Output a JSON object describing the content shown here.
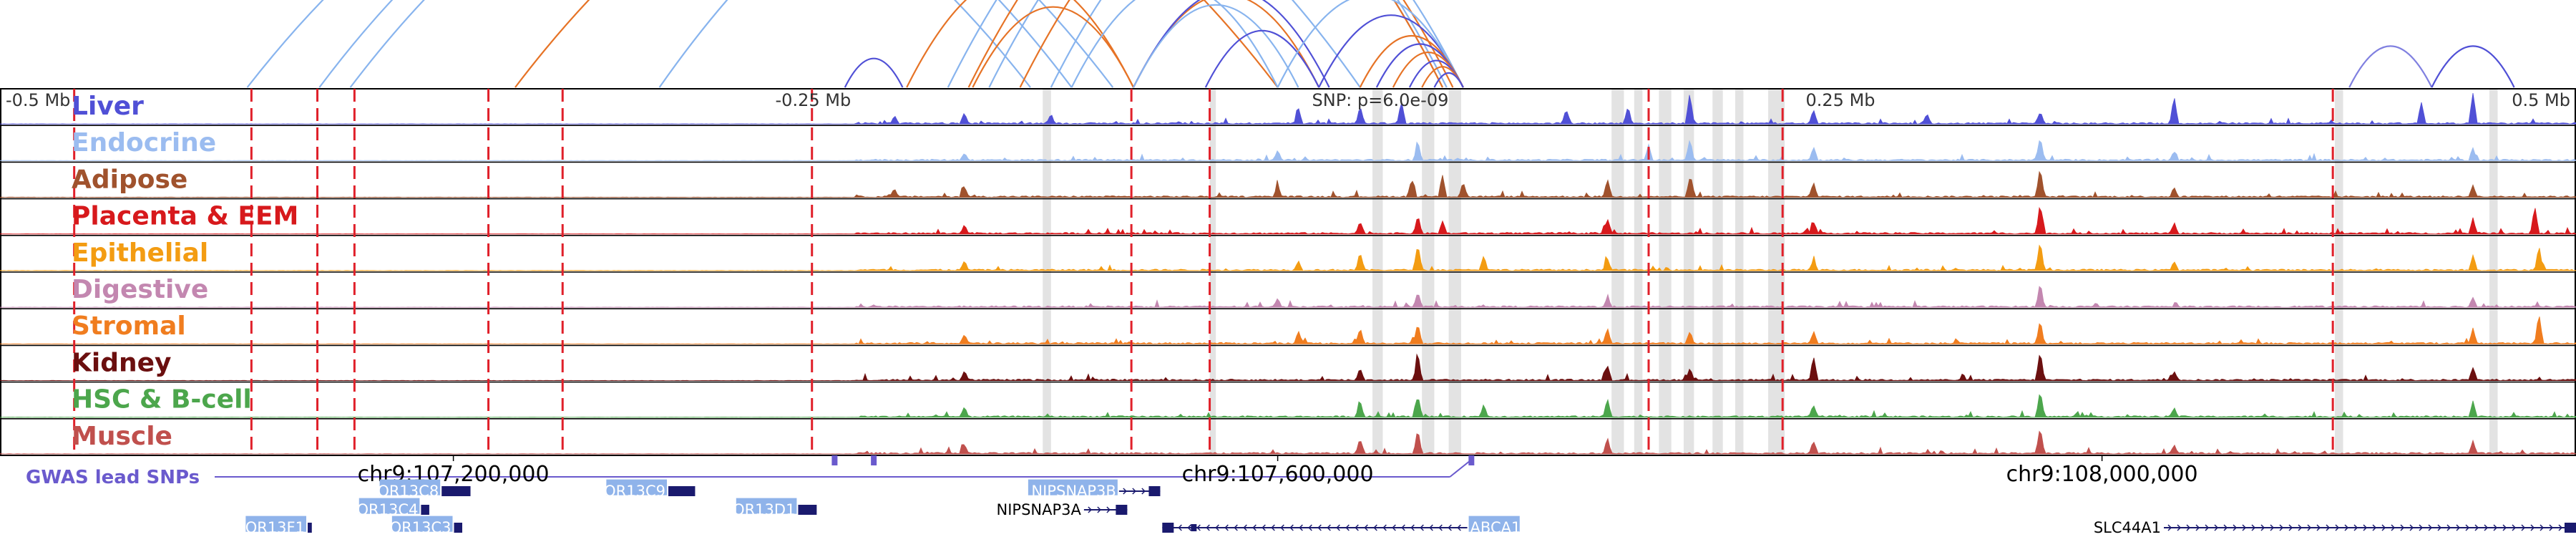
{
  "chart_data": {
    "type": "area",
    "title": "",
    "locus": {
      "chrom": "chr9",
      "start_bp": 106980000,
      "end_bp": 108230000,
      "lead_snp_bp": 107634000
    },
    "distance_ticks": [
      {
        "offset_mb": -0.5,
        "label": "-0.5 Mb"
      },
      {
        "offset_mb": -0.25,
        "label": "-0.25 Mb"
      },
      {
        "offset_mb": 0.25,
        "label": "0.25 Mb"
      },
      {
        "offset_mb": 0.5,
        "label": "0.5 Mb"
      }
    ],
    "snp_label": "SNP: p=6.0e-09",
    "coordinate_labels": [
      {
        "bp": 107200000,
        "label": "chr9:107,200,000"
      },
      {
        "bp": 107600000,
        "label": "chr9:107,600,000"
      },
      {
        "bp": 108000000,
        "label": "chr9:108,000,000"
      }
    ],
    "series": [
      {
        "name": "Liver",
        "color": "#5050d6",
        "peaks": [
          [
            107414000,
            0.25
          ],
          [
            107448000,
            0.35
          ],
          [
            107490000,
            0.3
          ],
          [
            107610000,
            0.5
          ],
          [
            107640000,
            0.6
          ],
          [
            107660000,
            0.75
          ],
          [
            107740000,
            0.5
          ],
          [
            107770000,
            0.55
          ],
          [
            107800000,
            1.0
          ],
          [
            107860000,
            0.45
          ],
          [
            107915000,
            0.3
          ],
          [
            107970000,
            0.4
          ],
          [
            108035000,
            0.9
          ],
          [
            108155000,
            0.7
          ],
          [
            108180000,
            1.0
          ]
        ]
      },
      {
        "name": "Endocrine",
        "color": "#9bbcf0",
        "peaks": [
          [
            107448000,
            0.25
          ],
          [
            107600000,
            0.3
          ],
          [
            107668000,
            0.6
          ],
          [
            107780000,
            0.5
          ],
          [
            107800000,
            0.7
          ],
          [
            107860000,
            0.45
          ],
          [
            107970000,
            0.8
          ],
          [
            108035000,
            0.3
          ],
          [
            108180000,
            0.4
          ]
        ]
      },
      {
        "name": "Adipose",
        "color": "#a0522d",
        "peaks": [
          [
            107414000,
            0.25
          ],
          [
            107448000,
            0.35
          ],
          [
            107600000,
            0.4
          ],
          [
            107665000,
            0.6
          ],
          [
            107680000,
            0.7
          ],
          [
            107690000,
            0.5
          ],
          [
            107760000,
            0.6
          ],
          [
            107800000,
            0.6
          ],
          [
            107860000,
            0.5
          ],
          [
            107970000,
            1.0
          ],
          [
            108035000,
            0.3
          ],
          [
            108180000,
            0.4
          ]
        ]
      },
      {
        "name": "Placenta & EEM",
        "color": "#d7191c",
        "peaks": [
          [
            107448000,
            0.3
          ],
          [
            107640000,
            0.4
          ],
          [
            107668000,
            0.6
          ],
          [
            107680000,
            0.4
          ],
          [
            107760000,
            0.5
          ],
          [
            107860000,
            0.35
          ],
          [
            107970000,
            1.0
          ],
          [
            108035000,
            0.35
          ],
          [
            108180000,
            0.5
          ],
          [
            108210000,
            0.9
          ]
        ]
      },
      {
        "name": "Epithelial",
        "color": "#f39c12",
        "peaks": [
          [
            107448000,
            0.3
          ],
          [
            107610000,
            0.3
          ],
          [
            107640000,
            0.6
          ],
          [
            107668000,
            0.9
          ],
          [
            107700000,
            0.5
          ],
          [
            107760000,
            0.4
          ],
          [
            107860000,
            0.3
          ],
          [
            107970000,
            1.0
          ],
          [
            108035000,
            0.3
          ],
          [
            108180000,
            0.5
          ],
          [
            108212000,
            0.8
          ]
        ]
      },
      {
        "name": "Digestive",
        "color": "#c387b0",
        "peaks": [
          [
            107600000,
            0.3
          ],
          [
            107668000,
            0.5
          ],
          [
            107760000,
            0.3
          ],
          [
            107970000,
            0.8
          ],
          [
            108180000,
            0.3
          ]
        ]
      },
      {
        "name": "Stromal",
        "color": "#f07d1f",
        "peaks": [
          [
            107448000,
            0.3
          ],
          [
            107610000,
            0.4
          ],
          [
            107640000,
            0.5
          ],
          [
            107668000,
            0.7
          ],
          [
            107760000,
            0.5
          ],
          [
            107800000,
            0.4
          ],
          [
            107860000,
            0.4
          ],
          [
            107970000,
            0.8
          ],
          [
            108180000,
            0.5
          ],
          [
            108212000,
            1.0
          ]
        ]
      },
      {
        "name": "Kidney",
        "color": "#6b0f0f",
        "peaks": [
          [
            107448000,
            0.3
          ],
          [
            107640000,
            0.4
          ],
          [
            107668000,
            0.9
          ],
          [
            107760000,
            0.5
          ],
          [
            107800000,
            0.4
          ],
          [
            107860000,
            0.8
          ],
          [
            107970000,
            1.0
          ],
          [
            108035000,
            0.3
          ],
          [
            108180000,
            0.4
          ]
        ]
      },
      {
        "name": "HSC & B-cell",
        "color": "#4ca64c",
        "peaks": [
          [
            107448000,
            0.3
          ],
          [
            107640000,
            0.5
          ],
          [
            107668000,
            0.7
          ],
          [
            107700000,
            0.4
          ],
          [
            107760000,
            0.6
          ],
          [
            107860000,
            0.4
          ],
          [
            107970000,
            0.9
          ],
          [
            108035000,
            0.3
          ],
          [
            108180000,
            0.5
          ]
        ]
      },
      {
        "name": "Muscle",
        "color": "#c0504d",
        "peaks": [
          [
            107448000,
            0.3
          ],
          [
            107640000,
            0.5
          ],
          [
            107668000,
            0.8
          ],
          [
            107760000,
            0.5
          ],
          [
            107860000,
            0.4
          ],
          [
            107970000,
            0.9
          ],
          [
            108035000,
            0.3
          ],
          [
            108180000,
            0.4
          ]
        ]
      }
    ],
    "gwas_track": {
      "label": "GWAS lead SNPs",
      "color": "#6a5acd",
      "snp_bp": [
        107385000,
        107404000,
        107694000
      ]
    },
    "variant_lines_bp": [
      107016000,
      107102000,
      107134000,
      107152000,
      107217000,
      107253000,
      107374000,
      107529000,
      107567000,
      107780000,
      107845000,
      108112000
    ],
    "highlight_regions_bp": [
      [
        107486000,
        107490000
      ],
      [
        107567000,
        107570000
      ],
      [
        107646000,
        107651000
      ],
      [
        107670000,
        107676000
      ],
      [
        107683000,
        107689000
      ],
      [
        107762000,
        107768000
      ],
      [
        107773000,
        107777000
      ],
      [
        107785000,
        107791000
      ],
      [
        107797000,
        107802000
      ],
      [
        107811000,
        107816000
      ],
      [
        107822000,
        107826000
      ],
      [
        107838000,
        107846000
      ],
      [
        108113000,
        108117000
      ],
      [
        108188000,
        108192000
      ]
    ],
    "loops": [
      {
        "start_bp": 107100000,
        "end_bp": 107480000,
        "color": "#88b4ee"
      },
      {
        "start_bp": 107135000,
        "end_bp": 107500000,
        "color": "#88b4ee"
      },
      {
        "start_bp": 107150000,
        "end_bp": 107520000,
        "color": "#88b4ee"
      },
      {
        "start_bp": 107230000,
        "end_bp": 107600000,
        "color": "#e67326"
      },
      {
        "start_bp": 107300000,
        "end_bp": 107640000,
        "color": "#88b4ee"
      },
      {
        "start_bp": 107440000,
        "end_bp": 107680000,
        "color": "#88b4ee"
      },
      {
        "start_bp": 107450000,
        "end_bp": 107680000,
        "color": "#e67326"
      },
      {
        "start_bp": 107460000,
        "end_bp": 107682000,
        "color": "#88b4ee"
      },
      {
        "start_bp": 107475000,
        "end_bp": 107685000,
        "color": "#e67326"
      },
      {
        "start_bp": 107490000,
        "end_bp": 107690000,
        "color": "#88b4ee"
      },
      {
        "start_bp": 107390000,
        "end_bp": 107418000,
        "color": "#5050d6"
      },
      {
        "start_bp": 107420000,
        "end_bp": 107530000,
        "color": "#e67326"
      },
      {
        "start_bp": 107452000,
        "end_bp": 107530000,
        "color": "#e67326"
      },
      {
        "start_bp": 107530000,
        "end_bp": 107620000,
        "color": "#e67326"
      },
      {
        "start_bp": 107530000,
        "end_bp": 107625000,
        "color": "#5050d6"
      },
      {
        "start_bp": 107530000,
        "end_bp": 107610000,
        "color": "#88b4ee"
      },
      {
        "start_bp": 107500000,
        "end_bp": 107600000,
        "color": "#88b4ee"
      },
      {
        "start_bp": 107565000,
        "end_bp": 107620000,
        "color": "#5050d6"
      },
      {
        "start_bp": 107620000,
        "end_bp": 107690000,
        "color": "#5050d6"
      },
      {
        "start_bp": 107600000,
        "end_bp": 107690000,
        "color": "#88b4ee"
      },
      {
        "start_bp": 107640000,
        "end_bp": 107690000,
        "color": "#e67326"
      },
      {
        "start_bp": 107648000,
        "end_bp": 107690000,
        "color": "#5050d6"
      },
      {
        "start_bp": 107656000,
        "end_bp": 107690000,
        "color": "#e67326"
      },
      {
        "start_bp": 107664000,
        "end_bp": 107690000,
        "color": "#5050d6"
      },
      {
        "start_bp": 107670000,
        "end_bp": 107690000,
        "color": "#e67326"
      },
      {
        "start_bp": 107676000,
        "end_bp": 107690000,
        "color": "#5050d6"
      },
      {
        "start_bp": 108120000,
        "end_bp": 108160000,
        "color": "#8080e0"
      },
      {
        "start_bp": 108160000,
        "end_bp": 108200000,
        "color": "#5050d6"
      }
    ],
    "genes": [
      {
        "name": "OR13C8",
        "start_bp": 107195000,
        "end_bp": 107209000,
        "row": 1,
        "highlight": true,
        "strand": "none"
      },
      {
        "name": "OR13C9",
        "start_bp": 107305000,
        "end_bp": 107318000,
        "row": 1,
        "highlight": true,
        "strand": "none"
      },
      {
        "name": "NIPSNAP3B",
        "start_bp": 107523000,
        "end_bp": 107543000,
        "row": 1,
        "highlight": true,
        "strand": "+"
      },
      {
        "name": "OR13C4",
        "start_bp": 107185000,
        "end_bp": 107189000,
        "row": 2,
        "highlight": true,
        "strand": "none"
      },
      {
        "name": "OR13D1",
        "start_bp": 107368000,
        "end_bp": 107377000,
        "row": 2,
        "highlight": true,
        "strand": "none"
      },
      {
        "name": "NIPSNAP3A",
        "start_bp": 107506000,
        "end_bp": 107527000,
        "row": 2,
        "highlight": false,
        "strand": "+"
      },
      {
        "name": "OR13F1",
        "start_bp": 107130000,
        "end_bp": 107132000,
        "row": 3,
        "highlight": true,
        "strand": "none"
      },
      {
        "name": "OR13C3",
        "start_bp": 107201000,
        "end_bp": 107205000,
        "row": 3,
        "highlight": true,
        "strand": "none"
      },
      {
        "name": "ABCA1",
        "start_bp": 107544000,
        "end_bp": 107692000,
        "row": 3,
        "highlight": true,
        "strand": "-"
      },
      {
        "name": "SLC44A1",
        "start_bp": 108030000,
        "end_bp": 108230000,
        "row": 3,
        "highlight": false,
        "strand": "+"
      }
    ]
  }
}
